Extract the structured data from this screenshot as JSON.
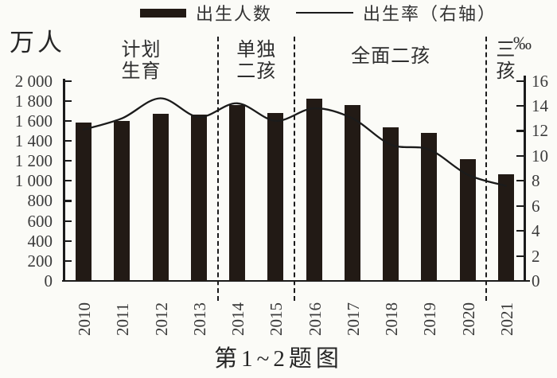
{
  "legend": {
    "bar_label": "出生人数",
    "line_label": "出生率（右轴）"
  },
  "axes": {
    "left_unit": "万人",
    "right_unit": "‰",
    "left_tick_labels": [
      "2 000",
      "1 800",
      "1 600",
      "1 400",
      "1 200",
      "1 000",
      "800",
      "600",
      "400",
      "200",
      "0"
    ],
    "right_tick_labels": [
      "16",
      "14",
      "12",
      "10",
      "8",
      "6",
      "4",
      "2",
      "0"
    ]
  },
  "caption": "第1~2题图",
  "colors": {
    "ink": "#1b1b1b",
    "bar": "#221a15",
    "line": "#1b1b1b",
    "paper": "#fbfbf7",
    "text": "#3a3a3a"
  },
  "chart_data": {
    "type": "bar",
    "subtype": "combo-bar-line",
    "title": "第1~2题图",
    "categories": [
      "2010",
      "2011",
      "2012",
      "2013",
      "2014",
      "2015",
      "2016",
      "2017",
      "2018",
      "2019",
      "2020",
      "2021"
    ],
    "series": [
      {
        "name": "出生人数",
        "chart": "bar",
        "axis": "left",
        "unit": "万人",
        "values": [
          1580,
          1600,
          1670,
          1660,
          1760,
          1680,
          1820,
          1760,
          1535,
          1480,
          1215,
          1065
        ]
      },
      {
        "name": "出生率（右轴）",
        "chart": "line",
        "axis": "right",
        "unit": "‰",
        "values": [
          12.1,
          13.0,
          14.6,
          13.1,
          14.2,
          12.8,
          13.8,
          13.0,
          10.9,
          10.5,
          8.5,
          7.6
        ]
      }
    ],
    "left_axis": {
      "label": "万人",
      "min": 0,
      "max": 2000,
      "tick_step": 200
    },
    "right_axis": {
      "label": "‰",
      "min": 0,
      "max": 16,
      "tick_step": 2
    },
    "annotations": [
      {
        "text": "计划生育",
        "lines": [
          "计划",
          "生育"
        ],
        "span": [
          "2010",
          "2013"
        ]
      },
      {
        "text": "单独二孩",
        "lines": [
          "单独",
          "二孩"
        ],
        "span": [
          "2014",
          "2015"
        ]
      },
      {
        "text": "全面二孩",
        "lines": [
          "全面二孩"
        ],
        "span": [
          "2016",
          "2020"
        ]
      },
      {
        "text": "三孩",
        "lines": [
          "三",
          "孩"
        ],
        "span": [
          "2021",
          "2021"
        ]
      }
    ],
    "dividers_after": [
      "2013",
      "2015",
      "2020"
    ],
    "legend_position": "top",
    "grid": false
  }
}
